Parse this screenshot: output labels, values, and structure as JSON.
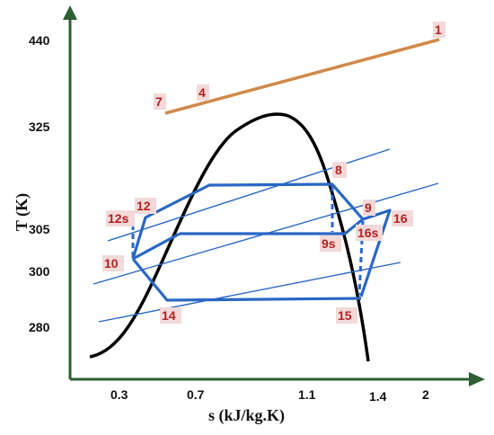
{
  "axes": {
    "x_title": "s (kJ/kg.K)",
    "y_title": "T (K)",
    "x_ticks": [
      "0.3",
      "0.7",
      "1.1",
      "1.4",
      "2"
    ],
    "y_ticks": [
      "440",
      "325",
      "305",
      "300",
      "280"
    ]
  },
  "points": {
    "p1": "1",
    "p4": "4",
    "p7": "7",
    "p8": "8",
    "p9": "9",
    "p9s": "9s",
    "p10": "10",
    "p12": "12",
    "p12s": "12s",
    "p14": "14",
    "p15": "15",
    "p16": "16",
    "p16s": "16s"
  },
  "colors": {
    "axis": "#2f5e34",
    "dome": "#000000",
    "cycle": "#2a67c6",
    "heat_source": "#d08a4a",
    "point_label": "#b22222"
  }
}
